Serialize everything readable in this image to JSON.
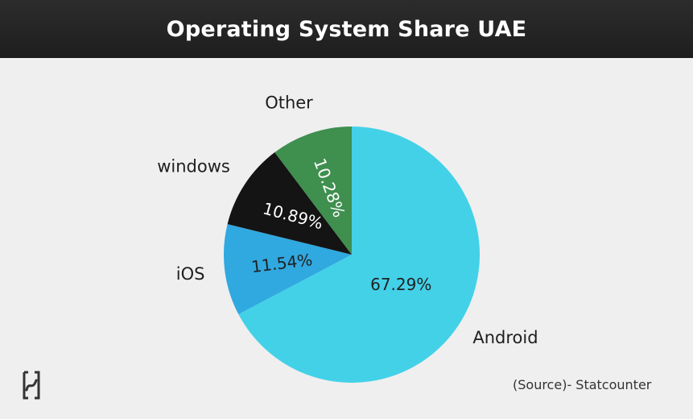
{
  "header": {
    "title": "Operating System Share UAE"
  },
  "source": {
    "text": "(Source)- Statcounter"
  },
  "logo": {
    "icon": "brand-logo-icon"
  },
  "chart_data": {
    "type": "pie",
    "title": "Operating System Share UAE",
    "start": "top, clockwise",
    "slices": [
      {
        "label": "Android",
        "value": 67.29,
        "display": "67.29%",
        "color": "#43d1e8",
        "text_color": "#222222"
      },
      {
        "label": "iOS",
        "value": 11.54,
        "display": "11.54%",
        "color": "#30a8e0",
        "text_color": "#222222"
      },
      {
        "label": "windows",
        "value": 10.89,
        "display": "10.89%",
        "color": "#141414",
        "text_color": "#ffffff"
      },
      {
        "label": "Other",
        "value": 10.28,
        "display": "10.28%",
        "color": "#3f8f4f",
        "text_color": "#ffffff"
      }
    ]
  }
}
